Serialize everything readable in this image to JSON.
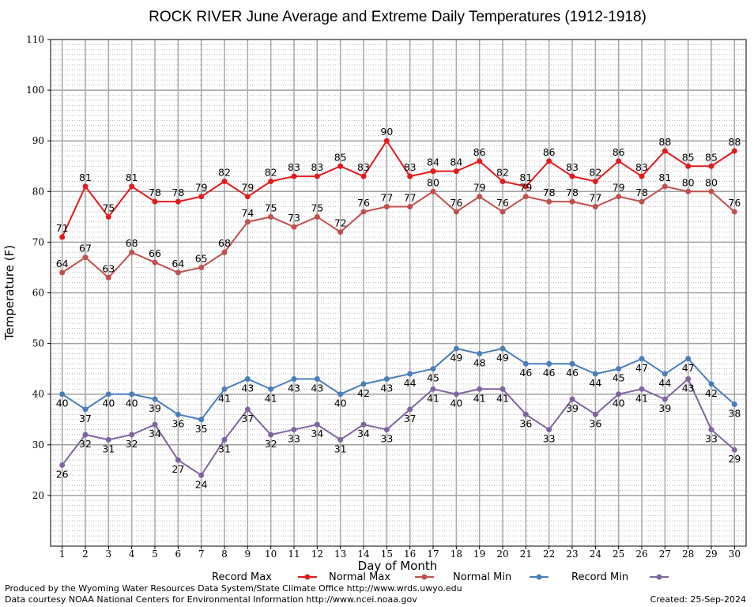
{
  "chart_data": {
    "type": "line",
    "title": "ROCK RIVER June Average and Extreme Daily Temperatures (1912-1918)",
    "xlabel": "Day of Month",
    "ylabel": "Temperature (F)",
    "x": [
      1,
      2,
      3,
      4,
      5,
      6,
      7,
      8,
      9,
      10,
      11,
      12,
      13,
      14,
      15,
      16,
      17,
      18,
      19,
      20,
      21,
      22,
      23,
      24,
      25,
      26,
      27,
      28,
      29,
      30
    ],
    "xlim": [
      0.5,
      30.5
    ],
    "ylim": [
      10,
      110
    ],
    "yticks": [
      20,
      30,
      40,
      50,
      60,
      70,
      80,
      90,
      100,
      110
    ],
    "grid": true,
    "legend_position": "bottom",
    "series": [
      {
        "name": "Record Max",
        "color": "#e41a1c",
        "values": [
          71,
          81,
          75,
          81,
          78,
          78,
          79,
          82,
          79,
          82,
          83,
          83,
          85,
          83,
          90,
          83,
          84,
          84,
          86,
          82,
          81,
          86,
          83,
          82,
          86,
          83,
          88,
          85,
          85,
          88
        ]
      },
      {
        "name": "Normal Max",
        "color": "#c0504d",
        "values": [
          64,
          67,
          63,
          68,
          66,
          64,
          65,
          68,
          74,
          75,
          73,
          75,
          72,
          76,
          77,
          77,
          80,
          76,
          79,
          76,
          79,
          78,
          78,
          77,
          79,
          78,
          81,
          80,
          80,
          76
        ]
      },
      {
        "name": "Normal Min",
        "color": "#4a7ebb",
        "values": [
          40,
          37,
          40,
          40,
          39,
          36,
          35,
          41,
          43,
          41,
          43,
          43,
          40,
          42,
          43,
          44,
          45,
          49,
          48,
          49,
          46,
          46,
          46,
          44,
          45,
          47,
          44,
          47,
          42,
          38
        ]
      },
      {
        "name": "Record Min",
        "color": "#8064a2",
        "values": [
          26,
          32,
          31,
          32,
          34,
          27,
          24,
          31,
          37,
          32,
          33,
          34,
          31,
          34,
          33,
          37,
          41,
          40,
          41,
          41,
          36,
          33,
          39,
          36,
          40,
          41,
          39,
          43,
          33,
          29
        ]
      }
    ]
  },
  "footer": {
    "produced_by": "Produced by the Wyoming Water Resources Data System/State Climate Office http://www.wrds.uwyo.edu",
    "courtesy": "Data courtesy NOAA National Centers for Environmental Information http://www.ncei.noaa.gov",
    "created": "Created: 25-Sep-2024"
  }
}
